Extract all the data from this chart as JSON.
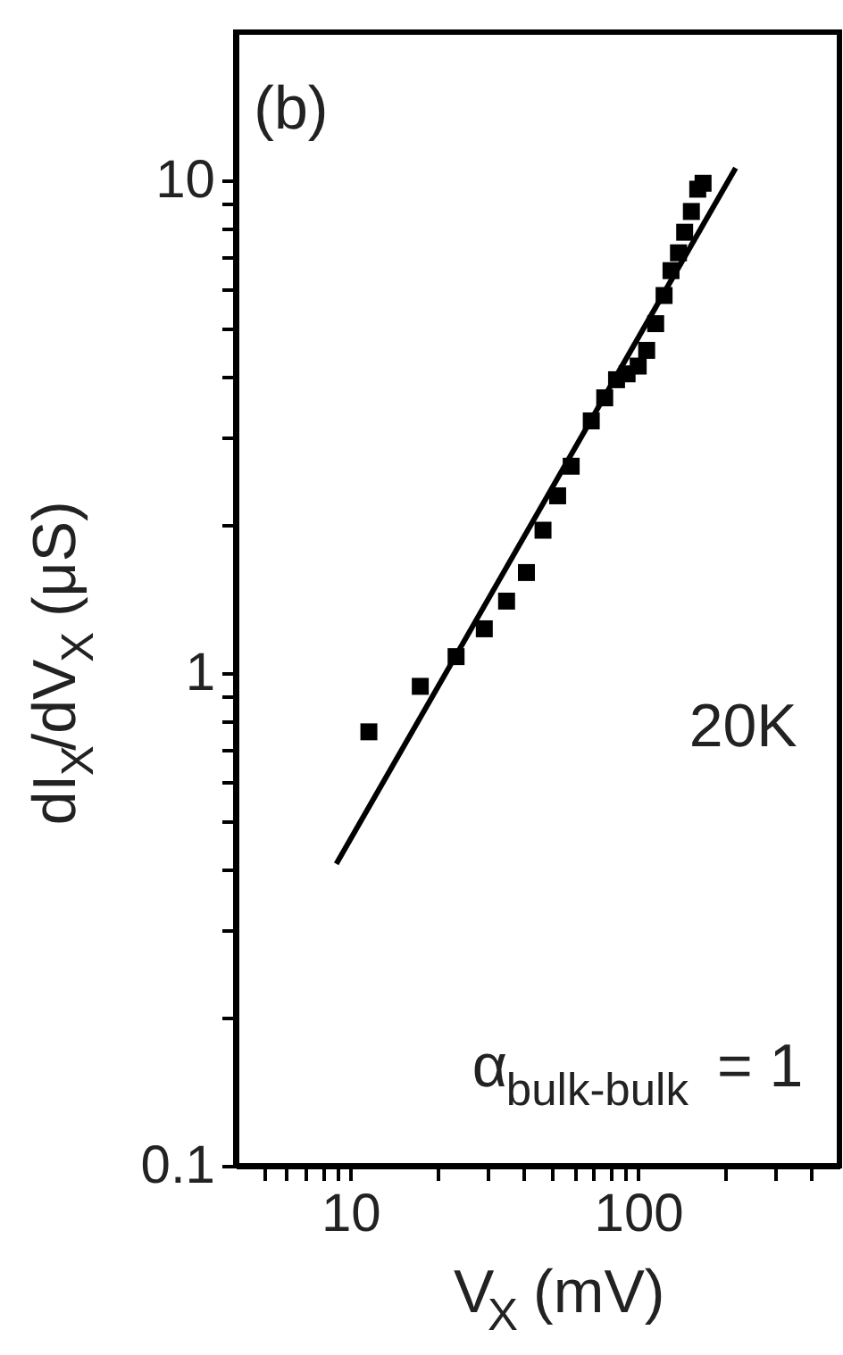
{
  "chart_data": {
    "type": "scatter",
    "xlabel": "V$_{X}$ (mV)",
    "ylabel": "dI$_{X}$/dV$_{X}$ (μS)",
    "annotations": [
      "(b)",
      "20K",
      "α$_{bulk-bulk}$ = 1"
    ],
    "log": "xy",
    "grid": false,
    "xlim": [
      4,
      500
    ],
    "ylim": [
      0.1,
      20
    ],
    "xticks": [
      {
        "value": 5,
        "label": null
      },
      {
        "value": 6,
        "label": null
      },
      {
        "value": 7,
        "label": null
      },
      {
        "value": 8,
        "label": null
      },
      {
        "value": 9,
        "label": null
      },
      10,
      {
        "value": 20,
        "label": null
      },
      {
        "value": 30,
        "label": null
      },
      {
        "value": 40,
        "label": null
      },
      {
        "value": 50,
        "label": null
      },
      {
        "value": 60,
        "label": null
      },
      {
        "value": 70,
        "label": null
      },
      {
        "value": 80,
        "label": null
      },
      {
        "value": 90,
        "label": null
      },
      100,
      {
        "value": 200,
        "label": null
      },
      {
        "value": 300,
        "label": null
      },
      {
        "value": 400,
        "label": null
      }
    ],
    "yticks": [
      0.1,
      {
        "value": 0.2,
        "label": null
      },
      {
        "value": 0.3,
        "label": null
      },
      {
        "value": 0.4,
        "label": null
      },
      {
        "value": 0.5,
        "label": null
      },
      {
        "value": 0.6,
        "label": null
      },
      {
        "value": 0.7,
        "label": null
      },
      {
        "value": 0.8,
        "label": null
      },
      {
        "value": 0.9,
        "label": null
      },
      1,
      {
        "value": 2,
        "label": null
      },
      {
        "value": 3,
        "label": null
      },
      {
        "value": 4,
        "label": null
      },
      {
        "value": 5,
        "label": null
      },
      {
        "value": 6,
        "label": null
      },
      {
        "value": 7,
        "label": null
      },
      {
        "value": 8,
        "label": null
      },
      {
        "value": 9,
        "label": null
      },
      10
    ],
    "series": [
      {
        "type": "scatter",
        "color": "#000000",
        "marker": "square",
        "x": [
          11.6,
          17.5,
          23.3,
          29.2,
          34.9,
          40.9,
          46.7,
          52.5,
          58.5,
          68.7,
          76.5,
          84.1,
          91.5,
          100,
          107,
          115,
          123,
          130,
          138,
          145,
          153,
          161,
          168
        ],
        "values": [
          0.76,
          0.94,
          1.08,
          1.23,
          1.4,
          1.6,
          1.95,
          2.29,
          2.63,
          3.25,
          3.62,
          3.94,
          4.05,
          4.2,
          4.52,
          5.12,
          5.84,
          6.56,
          7.13,
          7.85,
          8.65,
          9.6,
          9.87
        ]
      },
      {
        "type": "line",
        "color": "#000000",
        "line_style": "solid",
        "x": [
          8.94,
          218
        ],
        "values": [
          0.41,
          10.6
        ]
      }
    ]
  }
}
